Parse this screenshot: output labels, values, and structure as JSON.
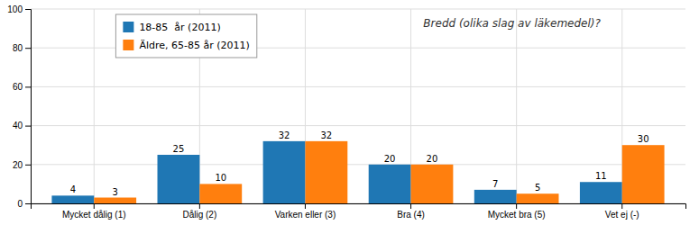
{
  "chart_data": {
    "type": "bar",
    "categories": [
      "Mycket dålig (1)",
      "Dålig (2)",
      "Varken eller (3)",
      "Bra (4)",
      "Mycket bra (5)",
      "Vet ej (-)"
    ],
    "series": [
      {
        "name": "18-85  år (2011)",
        "values": [
          4,
          25,
          32,
          20,
          7,
          11
        ]
      },
      {
        "name": "Äldre, 65-85 år (2011)",
        "values": [
          3,
          10,
          32,
          20,
          5,
          30
        ]
      }
    ],
    "ylim": [
      0,
      100
    ],
    "yticks": [
      0,
      20,
      40,
      60,
      80,
      100
    ],
    "grid": true,
    "data_labels": true,
    "legend": "upper left",
    "annotation": "Bredd (olika slag av läkemedel)?"
  }
}
